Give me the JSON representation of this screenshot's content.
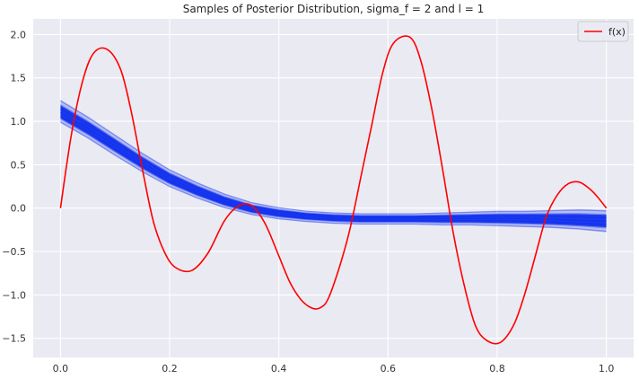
{
  "chart_data": {
    "type": "line",
    "title": "Samples of Posterior Distribution, sigma_f = 2 and l = 1",
    "xlabel": "",
    "ylabel": "",
    "xlim": [
      -0.05,
      1.05
    ],
    "ylim": [
      -1.72,
      2.18
    ],
    "x_ticks": [
      0.0,
      0.2,
      0.4,
      0.6,
      0.8,
      1.0
    ],
    "x_tick_labels": [
      "0.0",
      "0.2",
      "0.4",
      "0.6",
      "0.8",
      "1.0"
    ],
    "y_ticks": [
      -1.5,
      -1.0,
      -0.5,
      0.0,
      0.5,
      1.0,
      1.5,
      2.0
    ],
    "y_tick_labels": [
      "−1.5",
      "−1.0",
      "−0.5",
      "0.0",
      "0.5",
      "1.0",
      "1.5",
      "2.0"
    ],
    "grid": true,
    "legend": {
      "placement": "top-right",
      "entries": [
        "f(x)"
      ]
    },
    "colors": {
      "background": "#eaeaf2",
      "grid": "#ffffff",
      "fx": "#ff0000",
      "samples": "#0022ee"
    },
    "series": [
      {
        "name": "f(x)",
        "color": "#ff0000",
        "x": [
          0.0,
          0.02,
          0.04,
          0.06,
          0.085,
          0.11,
          0.13,
          0.15,
          0.17,
          0.19,
          0.21,
          0.24,
          0.27,
          0.3,
          0.325,
          0.35,
          0.375,
          0.4,
          0.42,
          0.44,
          0.46,
          0.475,
          0.49,
          0.51,
          0.53,
          0.55,
          0.57,
          0.59,
          0.61,
          0.64,
          0.66,
          0.68,
          0.7,
          0.72,
          0.74,
          0.76,
          0.78,
          0.805,
          0.83,
          0.85,
          0.87,
          0.89,
          0.91,
          0.93,
          0.95,
          0.97,
          0.985,
          1.0
        ],
        "y": [
          0.0,
          0.85,
          1.45,
          1.78,
          1.83,
          1.6,
          1.1,
          0.45,
          -0.15,
          -0.5,
          -0.68,
          -0.72,
          -0.52,
          -0.15,
          0.02,
          0.03,
          -0.18,
          -0.55,
          -0.85,
          -1.05,
          -1.15,
          -1.15,
          -1.05,
          -0.7,
          -0.25,
          0.35,
          0.95,
          1.55,
          1.9,
          1.97,
          1.7,
          1.15,
          0.45,
          -0.3,
          -0.9,
          -1.35,
          -1.52,
          -1.55,
          -1.35,
          -1.0,
          -0.55,
          -0.1,
          0.15,
          0.28,
          0.3,
          0.22,
          0.12,
          0.0
        ]
      },
      {
        "name": "",
        "color": "#0022ee",
        "band": true,
        "x": [
          0.0,
          0.05,
          0.1,
          0.15,
          0.2,
          0.25,
          0.3,
          0.35,
          0.4,
          0.45,
          0.5,
          0.55,
          0.6,
          0.65,
          0.7,
          0.75,
          0.8,
          0.85,
          0.9,
          0.95,
          1.0
        ],
        "y_mean": [
          1.1,
          0.92,
          0.72,
          0.52,
          0.34,
          0.2,
          0.08,
          -0.01,
          -0.06,
          -0.09,
          -0.11,
          -0.12,
          -0.12,
          -0.12,
          -0.12,
          -0.12,
          -0.12,
          -0.12,
          -0.13,
          -0.14,
          -0.15
        ],
        "y_upper": [
          1.25,
          1.06,
          0.85,
          0.64,
          0.45,
          0.3,
          0.17,
          0.07,
          0.01,
          -0.03,
          -0.05,
          -0.06,
          -0.06,
          -0.06,
          -0.05,
          -0.04,
          -0.03,
          -0.03,
          -0.02,
          -0.01,
          -0.02
        ],
        "y_lower": [
          0.98,
          0.8,
          0.6,
          0.41,
          0.24,
          0.11,
          0.0,
          -0.08,
          -0.13,
          -0.16,
          -0.18,
          -0.19,
          -0.19,
          -0.19,
          -0.2,
          -0.2,
          -0.21,
          -0.22,
          -0.23,
          -0.25,
          -0.28
        ]
      }
    ]
  }
}
